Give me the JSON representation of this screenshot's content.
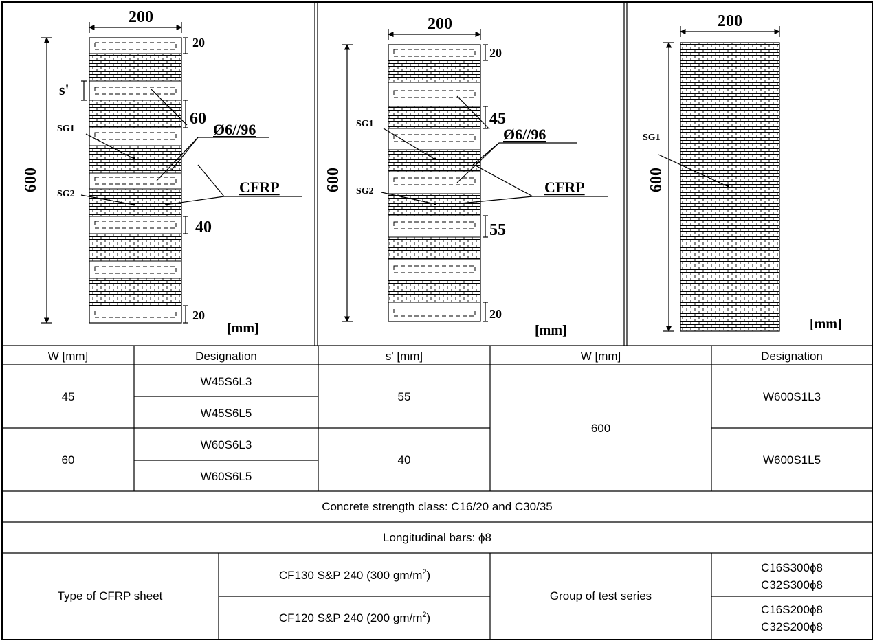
{
  "drawings": {
    "left": {
      "width": "200",
      "height": "600",
      "top": "20",
      "bottom": "20",
      "s_prime": "s'",
      "strip_gap": "60",
      "stirrup": "Ø6//96",
      "cfrp": "CFRP",
      "clear_gap": "40",
      "sg1": "SG1",
      "sg2": "SG2",
      "unit": "[mm]"
    },
    "middle": {
      "width": "200",
      "height": "600",
      "top": "20",
      "bottom": "20",
      "strip_gap": "45",
      "stirrup": "Ø6//96",
      "cfrp": "CFRP",
      "clear_gap": "55",
      "sg1": "SG1",
      "sg2": "SG2",
      "unit": "[mm]"
    },
    "right": {
      "width": "200",
      "height": "600",
      "sg1": "SG1",
      "unit": "[mm]"
    }
  },
  "table": {
    "headers": [
      "W [mm]",
      "Designation",
      "s' [mm]",
      "W [mm]",
      "Designation"
    ],
    "group1_w": "45",
    "group1_designations": [
      "W45S6L3",
      "W45S6L5"
    ],
    "group1_s": "55",
    "group2_w": "60",
    "group2_designations": [
      "W60S6L3",
      "W60S6L5"
    ],
    "group2_s": "40",
    "full_w": "600",
    "full_designations": [
      "W600S1L3",
      "W600S1L5"
    ],
    "concrete": "Concrete strength class: C16/20 and C30/35",
    "longitudinal": "Longitudinal bars: ϕ8",
    "cfrp_type_label": "Type of CFRP sheet",
    "cfrp_sheet1": "CF130 S&P 240 (300 gm/m",
    "cfrp_sheet2": "CF120 S&P 240 (200 gm/m",
    "superscript": "2",
    "close_paren": ")",
    "group_label": "Group of test series",
    "series": [
      "C16S300ϕ8",
      "C32S300ϕ8",
      "C16S200ϕ8",
      "C32S200ϕ8"
    ]
  }
}
